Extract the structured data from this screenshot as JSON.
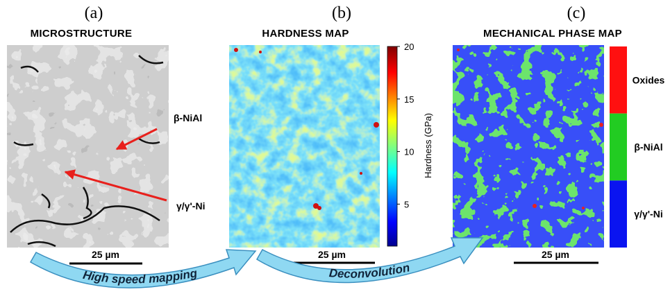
{
  "panels": [
    {
      "label": "(a)",
      "title": "MICROSTRUCTURE",
      "annotations": [
        "β-NiAl",
        "γ/γ'-Ni"
      ],
      "scale_bar": "25 µm"
    },
    {
      "label": "(b)",
      "title": "HARDNESS MAP",
      "scale_bar": "25 µm",
      "colorbar": {
        "label": "Hardness (GPa)",
        "lim": [
          1,
          20
        ],
        "ticks": [
          5,
          10,
          15,
          20
        ]
      }
    },
    {
      "label": "(c)",
      "title": "MECHANICAL PHASE MAP",
      "scale_bar": "25 µm",
      "legend": [
        {
          "name": "Oxides",
          "color": "#ff1010"
        },
        {
          "name": "β-NiAl",
          "color": "#22cc22"
        },
        {
          "name": "γ/γ'-Ni",
          "color": "#0a14f0"
        }
      ]
    }
  ],
  "arrows": [
    "High speed mapping",
    "Deconvolution"
  ]
}
